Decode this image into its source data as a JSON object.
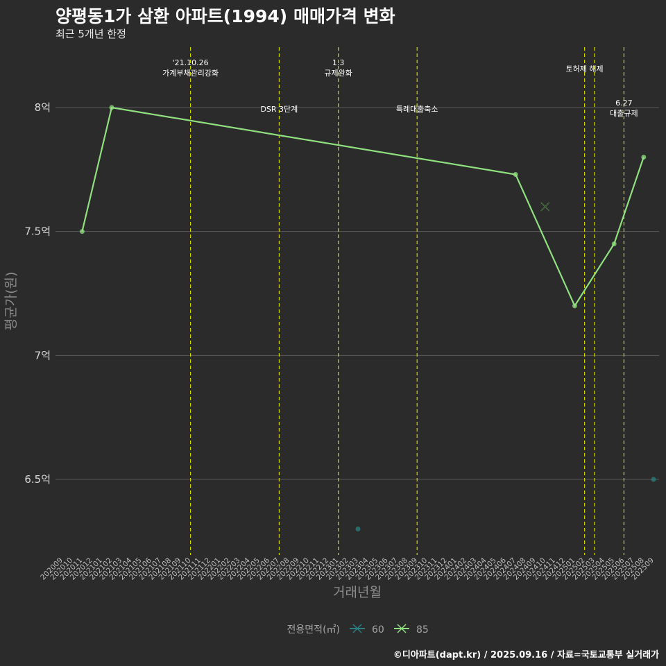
{
  "header": {
    "title": "양평동1가 삼환 아파트(1994) 매매가격 변화",
    "subtitle": "최근 5개년 한정",
    "caption": "©디아파트(dapt.kr) / 2025.09.16 / 자료=국토교통부 실거래가"
  },
  "colors": {
    "background": "#2b2b2b",
    "gridline": "#5a5a5a",
    "event_line": "#d4d400",
    "series_60": "#2a8080",
    "series_85": "#90e080"
  },
  "chart_data": {
    "type": "line",
    "title": "양평동1가 삼환 아파트(1994) 매매가격 변화",
    "subtitle": "최근 5개년 한정",
    "xlabel": "거래년월",
    "ylabel": "평균가(원)",
    "ylim": [
      6.2,
      8.2
    ],
    "grid": true,
    "legend_position": "bottom",
    "legend_title": "전용면적(㎡)",
    "y_ticks": [
      {
        "value": 6.5,
        "label": "6.5억"
      },
      {
        "value": 7.0,
        "label": "7억"
      },
      {
        "value": 7.5,
        "label": "7.5억"
      },
      {
        "value": 8.0,
        "label": "8억"
      }
    ],
    "x_categories": [
      "202009",
      "202010",
      "202011",
      "202012",
      "202101",
      "202102",
      "202103",
      "202104",
      "202105",
      "202106",
      "202107",
      "202108",
      "202109",
      "202110",
      "202111",
      "202112",
      "202201",
      "202202",
      "202203",
      "202204",
      "202205",
      "202206",
      "202207",
      "202208",
      "202209",
      "202210",
      "202211",
      "202212",
      "202301",
      "202302",
      "202303",
      "202304",
      "202305",
      "202306",
      "202307",
      "202308",
      "202309",
      "202310",
      "202311",
      "202312",
      "202401",
      "202402",
      "202403",
      "202404",
      "202405",
      "202406",
      "202407",
      "202408",
      "202409",
      "202410",
      "202411",
      "202412",
      "202501",
      "202502",
      "202503",
      "202504",
      "202505",
      "202506",
      "202507",
      "202508",
      "202509"
    ],
    "series": [
      {
        "name": "60",
        "color": "#2a8080",
        "points": [
          {
            "x": "202303",
            "y": 6.3
          },
          {
            "x": "202509",
            "y": 6.5
          }
        ]
      },
      {
        "name": "85",
        "color": "#90e080",
        "points": [
          {
            "x": "202011",
            "y": 7.5
          },
          {
            "x": "202102",
            "y": 8.0
          },
          {
            "x": "202407",
            "y": 7.73
          },
          {
            "x": "202501",
            "y": 7.2
          },
          {
            "x": "202505",
            "y": 7.45
          },
          {
            "x": "202508",
            "y": 7.8
          }
        ],
        "cross_point": {
          "x": "202410",
          "y": 7.6
        }
      }
    ],
    "events": [
      {
        "x": "202110",
        "label": "'21.10.26\n가계부채관리강화",
        "row": "top"
      },
      {
        "x": "202207",
        "label": "DSR 3단계",
        "row": "mid"
      },
      {
        "x": "202301",
        "label": "1.3\n규제완화",
        "row": "top"
      },
      {
        "x": "202309",
        "label": "특례대출축소",
        "row": "mid"
      },
      {
        "x": "202502",
        "label": "토허제 해제",
        "row": "top"
      },
      {
        "x": "202503",
        "label": "",
        "row": "top"
      },
      {
        "x": "202506",
        "label": "6.27\n대출규제",
        "row": "low"
      }
    ]
  }
}
